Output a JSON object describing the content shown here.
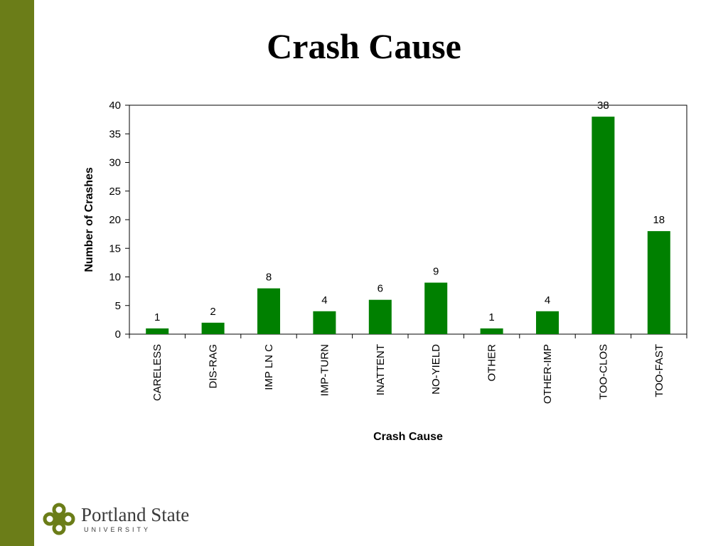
{
  "slide": {
    "title": "Crash Cause"
  },
  "logo": {
    "name": "Portland State",
    "subtitle": "UNIVERSITY"
  },
  "colors": {
    "side_bar": "#6b7d18",
    "bar": "#008000",
    "logo": "#6b7d18"
  },
  "chart_data": {
    "type": "bar",
    "categories": [
      "CARELESS",
      "DIS-RAG",
      "IMP LN C",
      "IMP-TURN",
      "INATTENT",
      "NO-YIELD",
      "OTHER",
      "OTHER-IMP",
      "TOO-CLOS",
      "TOO-FAST"
    ],
    "values": [
      1,
      2,
      8,
      4,
      6,
      9,
      1,
      4,
      38,
      18
    ],
    "data_labels": [
      "1",
      "2",
      "8",
      "4",
      "6",
      "9",
      "1",
      "4",
      "38",
      "18"
    ],
    "xlabel": "Crash Cause",
    "ylabel": "Number of Crashes",
    "ylim": [
      0,
      40
    ],
    "yticks": [
      0,
      5,
      10,
      15,
      20,
      25,
      30,
      35,
      40
    ],
    "grid": false,
    "legend": "none"
  }
}
